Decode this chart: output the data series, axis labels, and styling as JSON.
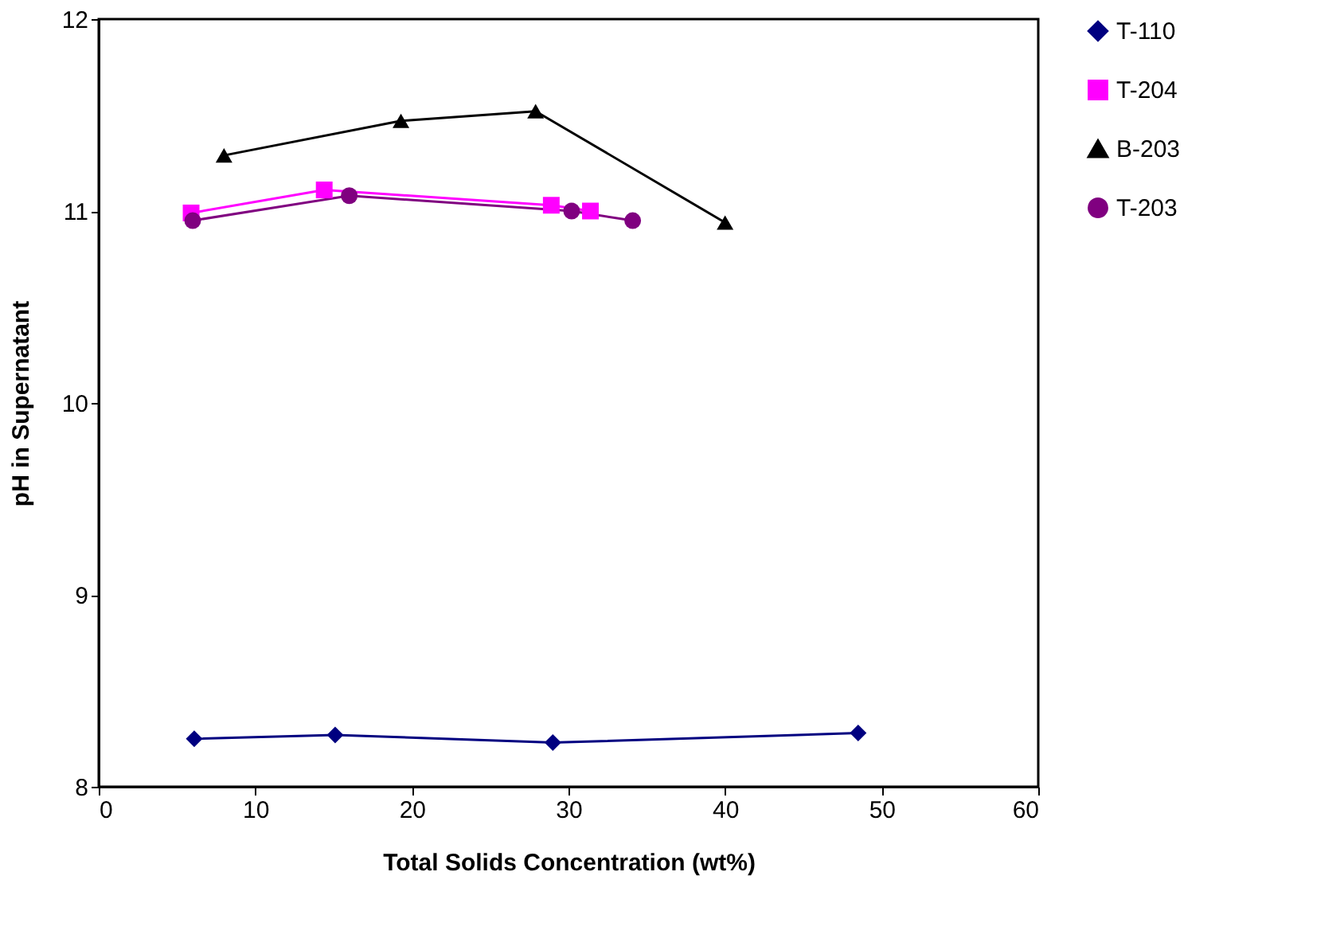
{
  "chart_data": {
    "type": "line",
    "xlabel": "Total Solids Concentration (wt%)",
    "ylabel": "pH in Supernatant",
    "xlim": [
      0,
      60
    ],
    "xticks": [
      0,
      10,
      20,
      30,
      40,
      50,
      60
    ],
    "ylim": [
      8,
      12
    ],
    "yticks": [
      8,
      9,
      10,
      11,
      12
    ],
    "grid": false,
    "legend": "right",
    "series": [
      {
        "name": "T-110",
        "color": "#000080",
        "marker": "diamond",
        "x": [
          6.1,
          15.1,
          29.0,
          48.5
        ],
        "values": [
          8.25,
          8.27,
          8.23,
          8.28
        ]
      },
      {
        "name": "T-204",
        "color": "#ff00ff",
        "marker": "square",
        "x": [
          5.9,
          14.4,
          28.9,
          31.4
        ],
        "values": [
          10.99,
          11.11,
          11.03,
          11.0
        ]
      },
      {
        "name": "B-203",
        "color": "#000000",
        "marker": "triangle",
        "x": [
          8.0,
          19.3,
          27.9,
          40.0
        ],
        "values": [
          11.29,
          11.47,
          11.52,
          10.94
        ]
      },
      {
        "name": "T-203",
        "color": "#800080",
        "marker": "circle",
        "x": [
          6.0,
          16.0,
          30.2,
          34.1
        ],
        "values": [
          10.95,
          11.08,
          11.0,
          10.95
        ]
      }
    ]
  }
}
